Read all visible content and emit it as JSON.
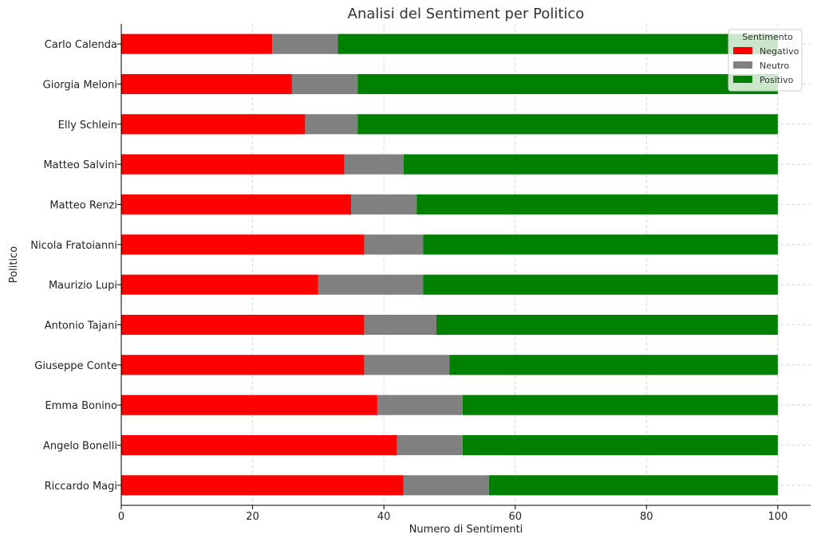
{
  "chart_data": {
    "type": "bar",
    "orientation": "horizontal",
    "stacked": true,
    "title": "Analisi del Sentiment per Politico",
    "xlabel": "Numero di Sentimenti",
    "ylabel": "Politico",
    "xlim": [
      0,
      105
    ],
    "xticks": [
      0,
      20,
      40,
      60,
      80,
      100
    ],
    "grid": true,
    "legend": {
      "title": "Sentimento",
      "placement": "top-right"
    },
    "categories": [
      "Carlo Calenda",
      "Giorgia Meloni",
      "Elly Schlein",
      "Matteo Salvini",
      "Matteo Renzi",
      "Nicola Fratoianni",
      "Maurizio Lupi",
      "Antonio Tajani",
      "Giuseppe Conte",
      "Emma Bonino",
      "Angelo Bonelli",
      "Riccardo Magi"
    ],
    "series": [
      {
        "name": "Negativo",
        "color": "#ff0000",
        "values": [
          23,
          26,
          28,
          34,
          35,
          37,
          30,
          37,
          37,
          39,
          42,
          43
        ]
      },
      {
        "name": "Neutro",
        "color": "#808080",
        "values": [
          10,
          10,
          8,
          9,
          10,
          9,
          16,
          11,
          13,
          13,
          10,
          13
        ]
      },
      {
        "name": "Positivo",
        "color": "#008000",
        "values": [
          67,
          64,
          64,
          57,
          55,
          54,
          54,
          52,
          50,
          48,
          48,
          44
        ]
      }
    ]
  }
}
